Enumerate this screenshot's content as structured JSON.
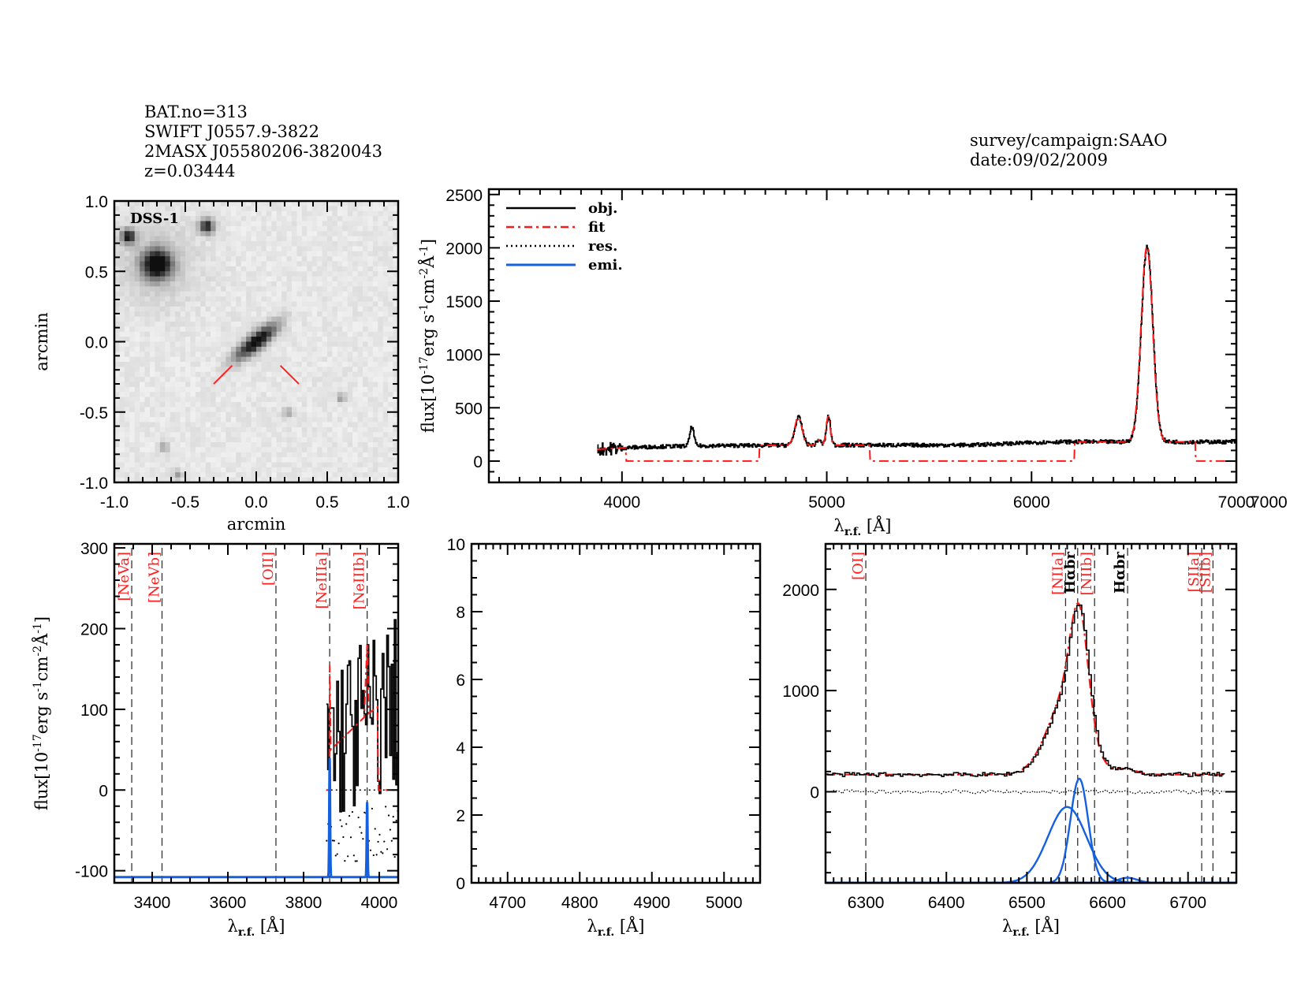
{
  "header": {
    "left": [
      "BAT.no=313",
      "SWIFT J0557.9-3822",
      "2MASX J05580206-3820043",
      "z=0.03444"
    ],
    "right": [
      "survey/campaign:SAAO",
      "date:09/02/2009"
    ]
  },
  "colors": {
    "obj": "#000000",
    "fit": "#ff1a1a",
    "res": "#000000",
    "emi": "#1560e0",
    "marker": "#ff2020"
  },
  "chart_data": [
    {
      "id": "image",
      "type": "heatmap",
      "title": "",
      "inset_label": "DSS-1",
      "xlabel": "arcmin",
      "ylabel": "arcmin",
      "xlim": [
        -1.0,
        1.0
      ],
      "ylim": [
        -1.0,
        1.0
      ],
      "xticks": [
        "-1.0",
        "-0.5",
        "0.0",
        "0.5",
        "1.0"
      ],
      "yticks": [
        "-1.0",
        "-0.5",
        "0.0",
        "0.5",
        "1.0"
      ],
      "sources": [
        {
          "name": "target-galaxy",
          "x": 0.0,
          "y": 0.0,
          "shape": "elongated",
          "angle_deg": 40
        },
        {
          "name": "bright-star",
          "x": -0.7,
          "y": 0.55
        },
        {
          "name": "star",
          "x": -0.35,
          "y": 0.82
        },
        {
          "name": "star",
          "x": -0.9,
          "y": 0.75
        },
        {
          "name": "faint-source",
          "x": -0.55,
          "y": -0.95
        },
        {
          "name": "faint-source",
          "x": -0.65,
          "y": -0.75
        },
        {
          "name": "faint-source",
          "x": 0.6,
          "y": -0.4
        },
        {
          "name": "faint-source",
          "x": 0.22,
          "y": -0.5
        }
      ],
      "markers": [
        {
          "from": [
            -0.3,
            -0.3
          ],
          "to": [
            -0.17,
            -0.17
          ]
        },
        {
          "from": [
            0.17,
            -0.17
          ],
          "to": [
            0.3,
            -0.3
          ]
        }
      ]
    },
    {
      "id": "full-spectrum",
      "type": "line",
      "xlabel": "λr.f. [Å]",
      "ylabel": "flux[10^-17 erg s^-1 cm^-2 Å^-1]",
      "xlim": [
        3350,
        7000
      ],
      "ylim": [
        -200,
        2550
      ],
      "xticks": [
        "4000",
        "5000",
        "6000",
        "7000"
      ],
      "yticks": [
        "0",
        "500",
        "1000",
        "1500",
        "2000",
        "2500"
      ],
      "legend": {
        "position": "top-left",
        "entries": [
          "obj.",
          "fit",
          "res.",
          "emi."
        ]
      },
      "continuum": 150,
      "obj_range": [
        3880,
        7000
      ],
      "emission_peaks": [
        {
          "x": 4340,
          "peak": 330
        },
        {
          "x": 4861,
          "peak": 410
        },
        {
          "x": 4959,
          "peak": 200
        },
        {
          "x": 5007,
          "peak": 420
        },
        {
          "x": 6563,
          "peak": 1980
        }
      ],
      "fit_masked_segments": [
        [
          4020,
          4670
        ],
        [
          5210,
          6210
        ],
        [
          6800,
          7000
        ]
      ]
    },
    {
      "id": "nev-neiii-panel",
      "type": "line",
      "xlabel": "λr.f. [Å]",
      "ylabel": "flux[10^-17 erg s^-1 cm^-2 Å^-1]",
      "xlim": [
        3300,
        4050
      ],
      "ylim": [
        -115,
        305
      ],
      "xticks": [
        "3400",
        "3600",
        "3800",
        "4000"
      ],
      "yticks": [
        "-100",
        "0",
        "100",
        "200",
        "300"
      ],
      "lines": [
        {
          "label": "[NeVa]",
          "x": 3346
        },
        {
          "label": "[NeVb]",
          "x": 3426
        },
        {
          "label": "[OII]",
          "x": 3727
        },
        {
          "label": "[NeIIIa]",
          "x": 3869
        },
        {
          "label": "[NeIIIb]",
          "x": 3968
        }
      ],
      "obj_range": [
        3860,
        4050
      ],
      "fit_points": [
        [
          3860,
          0
        ],
        [
          3868,
          0
        ],
        [
          3869,
          155
        ],
        [
          3872,
          50
        ],
        [
          3960,
          90
        ],
        [
          3968,
          180
        ],
        [
          3972,
          95
        ],
        [
          3995,
          103
        ],
        [
          3998,
          0
        ],
        [
          4050,
          0
        ]
      ],
      "emi_peaks": [
        {
          "x": 3869,
          "peak": 40
        },
        {
          "x": 3968,
          "peak": -15
        }
      ],
      "emi_baseline": -108
    },
    {
      "id": "hbeta-panel",
      "type": "line",
      "xlabel": "λr.f. [Å]",
      "ylabel": "",
      "xlim": [
        4650,
        5050
      ],
      "ylim": [
        0,
        10
      ],
      "xticks": [
        "4700",
        "4800",
        "4900",
        "5000"
      ],
      "yticks": [
        "0",
        "2",
        "4",
        "6",
        "8",
        "10"
      ],
      "series": []
    },
    {
      "id": "halpha-panel",
      "type": "line",
      "xlabel": "λr.f. [Å]",
      "ylabel": "",
      "xlim": [
        6250,
        6760
      ],
      "ylim": [
        -900,
        2450
      ],
      "xticks": [
        "6300",
        "6400",
        "6500",
        "6600",
        "6700"
      ],
      "yticks": [
        "0",
        "1000",
        "2000"
      ],
      "lines": [
        {
          "label": "[OI]",
          "x": 6300,
          "color": "red"
        },
        {
          "label": "[NIIa]",
          "x": 6548,
          "color": "red"
        },
        {
          "label": "Hαbr",
          "x": 6563,
          "color": "black"
        },
        {
          "label": "[NIIb]",
          "x": 6584,
          "color": "red"
        },
        {
          "label": "Hαbr",
          "x": 6625,
          "color": "black"
        },
        {
          "label": "[SIIa]",
          "x": 6717,
          "color": "red"
        },
        {
          "label": "[SIIb]",
          "x": 6731,
          "color": "red"
        }
      ],
      "continuum": 170,
      "obj_peak": {
        "x": 6563,
        "y": 1950
      },
      "emi_components": [
        {
          "center": 6550,
          "amplitude": 750,
          "sigma": 24
        },
        {
          "center": 6565,
          "amplitude": 1030,
          "sigma": 11
        },
        {
          "center": 6625,
          "amplitude": 50,
          "sigma": 12
        }
      ],
      "emi_baseline": -900
    }
  ]
}
